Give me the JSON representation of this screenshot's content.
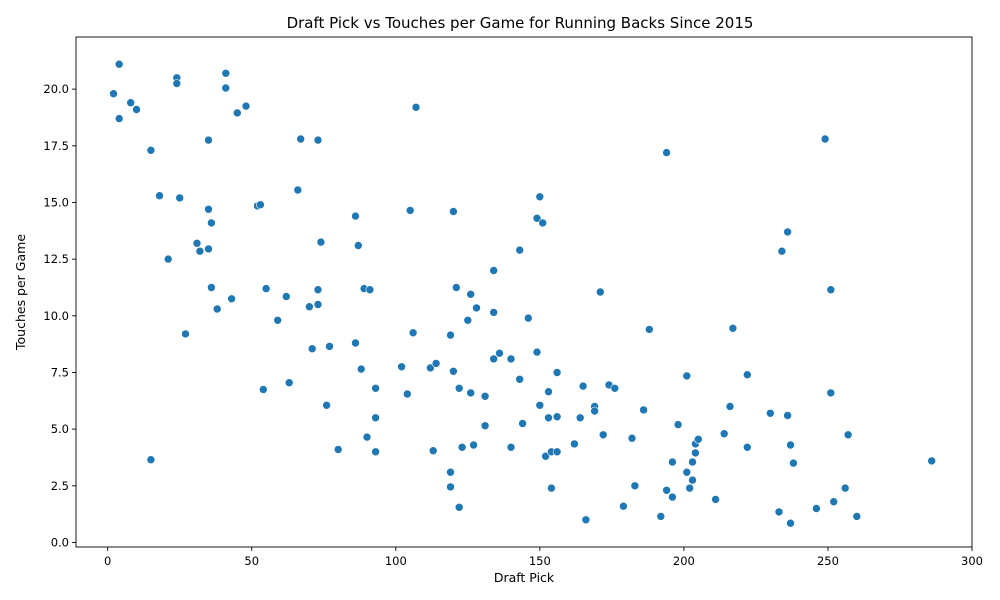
{
  "chart_data": {
    "type": "scatter",
    "title": "Draft Pick vs Touches per Game for Running Backs Since 2015",
    "xlabel": "Draft Pick",
    "ylabel": "Touches per Game",
    "xlim": [
      -11,
      300
    ],
    "ylim": [
      -0.2,
      22.3
    ],
    "xticks": [
      0,
      50,
      100,
      150,
      200,
      250,
      300
    ],
    "yticks": [
      0.0,
      2.5,
      5.0,
      7.5,
      10.0,
      12.5,
      15.0,
      17.5,
      20.0
    ],
    "ytick_labels": [
      "0.0",
      "2.5",
      "5.0",
      "7.5",
      "10.0",
      "12.5",
      "15.0",
      "17.5",
      "20.0"
    ],
    "grid": false,
    "legend": false,
    "color": "#1f77b4",
    "points": [
      [
        2,
        19.8
      ],
      [
        4,
        21.1
      ],
      [
        4,
        18.7
      ],
      [
        8,
        19.4
      ],
      [
        10,
        19.1
      ],
      [
        15,
        17.3
      ],
      [
        15,
        3.65
      ],
      [
        18,
        15.3
      ],
      [
        21,
        12.5
      ],
      [
        24,
        20.5
      ],
      [
        24,
        20.25
      ],
      [
        25,
        15.2
      ],
      [
        27,
        9.2
      ],
      [
        31,
        13.2
      ],
      [
        32,
        12.85
      ],
      [
        35,
        17.75
      ],
      [
        35,
        14.7
      ],
      [
        35,
        12.95
      ],
      [
        36,
        14.1
      ],
      [
        36,
        11.25
      ],
      [
        38,
        10.3
      ],
      [
        41,
        20.7
      ],
      [
        41,
        20.05
      ],
      [
        43,
        10.75
      ],
      [
        45,
        18.95
      ],
      [
        48,
        19.25
      ],
      [
        52,
        14.85
      ],
      [
        53,
        14.9
      ],
      [
        54,
        6.75
      ],
      [
        55,
        11.2
      ],
      [
        59,
        9.8
      ],
      [
        62,
        10.85
      ],
      [
        63,
        7.05
      ],
      [
        66,
        15.55
      ],
      [
        67,
        17.8
      ],
      [
        70,
        10.4
      ],
      [
        71,
        8.55
      ],
      [
        73,
        17.75
      ],
      [
        73,
        11.15
      ],
      [
        73,
        10.5
      ],
      [
        74,
        13.25
      ],
      [
        76,
        6.05
      ],
      [
        77,
        8.65
      ],
      [
        80,
        4.1
      ],
      [
        86,
        14.4
      ],
      [
        86,
        8.8
      ],
      [
        87,
        13.1
      ],
      [
        88,
        7.65
      ],
      [
        89,
        11.2
      ],
      [
        90,
        4.65
      ],
      [
        91,
        11.15
      ],
      [
        93,
        6.8
      ],
      [
        93,
        5.5
      ],
      [
        93,
        4.0
      ],
      [
        102,
        7.75
      ],
      [
        104,
        6.55
      ],
      [
        105,
        14.65
      ],
      [
        106,
        9.25
      ],
      [
        107,
        19.2
      ],
      [
        112,
        7.7
      ],
      [
        113,
        4.05
      ],
      [
        114,
        7.9
      ],
      [
        119,
        9.15
      ],
      [
        119,
        3.1
      ],
      [
        119,
        2.45
      ],
      [
        120,
        14.6
      ],
      [
        120,
        7.55
      ],
      [
        121,
        11.25
      ],
      [
        122,
        6.8
      ],
      [
        122,
        1.55
      ],
      [
        123,
        4.2
      ],
      [
        125,
        9.8
      ],
      [
        126,
        10.95
      ],
      [
        126,
        6.6
      ],
      [
        127,
        4.3
      ],
      [
        128,
        10.35
      ],
      [
        131,
        6.45
      ],
      [
        131,
        5.15
      ],
      [
        134,
        12.0
      ],
      [
        134,
        10.15
      ],
      [
        134,
        8.1
      ],
      [
        136,
        8.35
      ],
      [
        140,
        8.1
      ],
      [
        140,
        4.2
      ],
      [
        143,
        12.9
      ],
      [
        143,
        7.2
      ],
      [
        144,
        5.25
      ],
      [
        146,
        9.9
      ],
      [
        149,
        14.3
      ],
      [
        149,
        8.4
      ],
      [
        150,
        15.25
      ],
      [
        150,
        6.05
      ],
      [
        151,
        14.1
      ],
      [
        152,
        3.8
      ],
      [
        153,
        6.65
      ],
      [
        153,
        5.5
      ],
      [
        154,
        4.0
      ],
      [
        154,
        2.4
      ],
      [
        156,
        7.5
      ],
      [
        156,
        5.55
      ],
      [
        156,
        4.0
      ],
      [
        162,
        4.35
      ],
      [
        164,
        5.5
      ],
      [
        165,
        6.9
      ],
      [
        166,
        1.0
      ],
      [
        169,
        6.0
      ],
      [
        169,
        5.8
      ],
      [
        171,
        11.05
      ],
      [
        172,
        4.75
      ],
      [
        174,
        6.95
      ],
      [
        176,
        6.8
      ],
      [
        179,
        1.6
      ],
      [
        182,
        4.6
      ],
      [
        183,
        2.5
      ],
      [
        186,
        5.85
      ],
      [
        188,
        9.4
      ],
      [
        192,
        1.15
      ],
      [
        194,
        17.2
      ],
      [
        194,
        2.3
      ],
      [
        196,
        3.55
      ],
      [
        196,
        2.0
      ],
      [
        198,
        5.2
      ],
      [
        201,
        7.35
      ],
      [
        201,
        3.1
      ],
      [
        202,
        2.4
      ],
      [
        203,
        3.55
      ],
      [
        203,
        2.75
      ],
      [
        204,
        4.35
      ],
      [
        204,
        3.95
      ],
      [
        205,
        4.55
      ],
      [
        211,
        1.9
      ],
      [
        214,
        4.8
      ],
      [
        216,
        6.0
      ],
      [
        217,
        9.45
      ],
      [
        222,
        7.4
      ],
      [
        222,
        4.2
      ],
      [
        230,
        5.7
      ],
      [
        233,
        1.35
      ],
      [
        234,
        12.85
      ],
      [
        236,
        13.7
      ],
      [
        236,
        5.6
      ],
      [
        237,
        4.3
      ],
      [
        237,
        0.85
      ],
      [
        238,
        3.5
      ],
      [
        246,
        1.5
      ],
      [
        249,
        17.8
      ],
      [
        251,
        11.15
      ],
      [
        251,
        6.6
      ],
      [
        252,
        1.8
      ],
      [
        256,
        2.4
      ],
      [
        257,
        4.75
      ],
      [
        260,
        1.15
      ],
      [
        286,
        3.6
      ]
    ]
  }
}
